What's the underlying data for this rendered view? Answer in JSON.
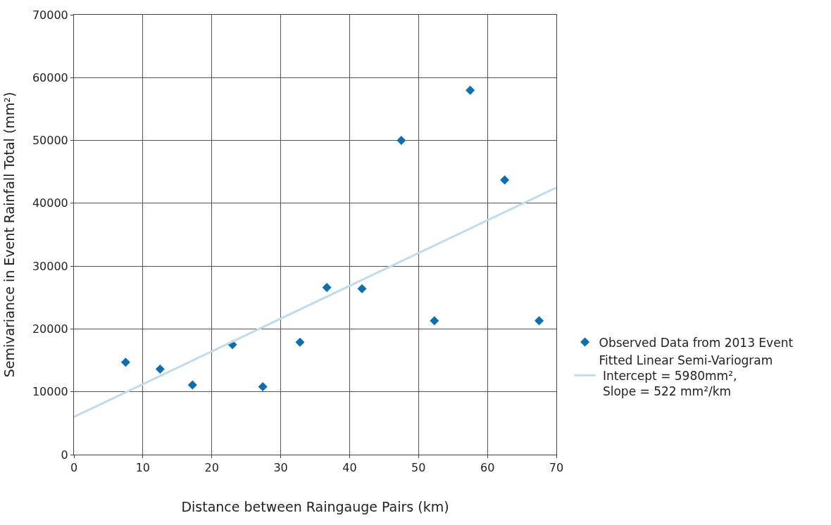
{
  "chart_data": {
    "type": "scatter",
    "xlabel": "Distance between Raingauge Pairs (km)",
    "ylabel": "Semivariance in Event Rainfall Total (mm²)",
    "xlim": [
      0,
      70
    ],
    "xticks": [
      0,
      10,
      20,
      30,
      40,
      50,
      60,
      70
    ],
    "ylim": [
      0,
      70000
    ],
    "yticks": [
      0,
      10000,
      20000,
      30000,
      40000,
      50000,
      60000,
      70000
    ],
    "grid": true,
    "legend": "bottom right",
    "series": [
      {
        "name": "Observed Data from 2013 Event",
        "marker": "diamond",
        "color": "#0b6fb3",
        "x": [
          7.5,
          12.5,
          17.2,
          23.0,
          27.4,
          32.8,
          36.7,
          41.8,
          47.5,
          52.3,
          57.5,
          62.5,
          67.5
        ],
        "values": [
          14700,
          13600,
          11100,
          17500,
          10800,
          17900,
          26600,
          26400,
          50000,
          21300,
          58000,
          43700,
          21300
        ]
      },
      {
        "name": "Fitted Linear Semi-Variogram\n Intercept = 5980mm²,\n Slope = 522 mm²/km",
        "type": "line",
        "marker": "none",
        "line_style": "solid",
        "color": "#bddcf2",
        "x": [
          0,
          70
        ],
        "values": [
          6000,
          42500
        ]
      }
    ]
  }
}
